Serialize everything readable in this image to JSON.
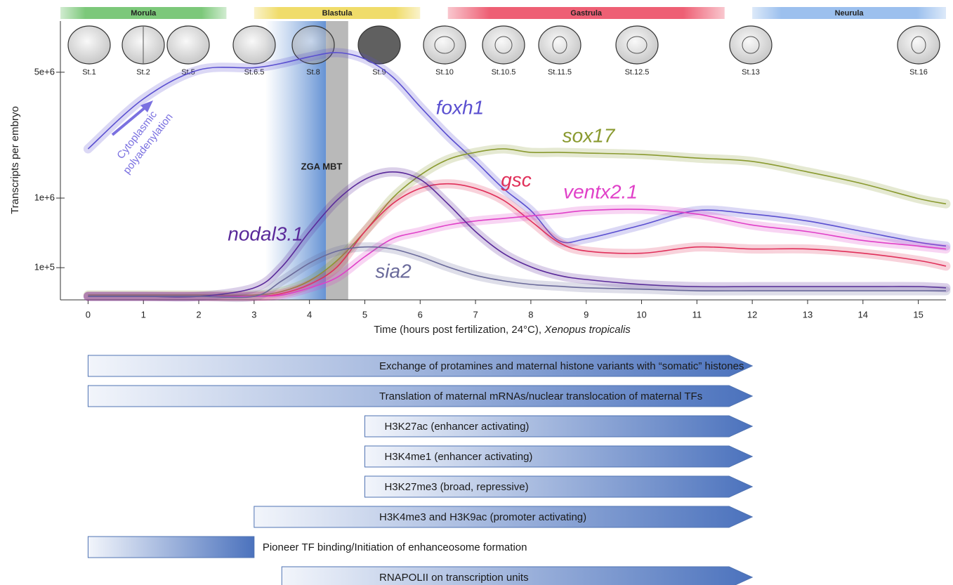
{
  "chart_data": {
    "type": "line",
    "ylabel": "Transcripts per embryo",
    "xlabel": "Time (hours post fertilization, 24°C),",
    "xlabel_italic": "Xenopus tropicalis",
    "xlim": [
      -0.5,
      15.5
    ],
    "xticks": [
      0,
      1,
      2,
      3,
      4,
      5,
      6,
      7,
      8,
      9,
      10,
      11,
      12,
      13,
      14,
      15
    ],
    "ylim": [
      0,
      7500000
    ],
    "yscale": "sqrt",
    "yticks": [
      {
        "value": 100000,
        "label": "1e+5"
      },
      {
        "value": 1000000,
        "label": "1e+6"
      },
      {
        "value": 5000000,
        "label": "5e+6"
      }
    ],
    "x": [
      0,
      1,
      2,
      3,
      3.5,
      4,
      4.5,
      5,
      5.5,
      6,
      6.5,
      7,
      7.5,
      8,
      8.5,
      9,
      10,
      11,
      12,
      13,
      14,
      15,
      15.5
    ],
    "series": [
      {
        "name": "foxh1",
        "color": "#5a4fd0",
        "values": [
          2200000,
          3900000,
          5100000,
          5200000,
          5400000,
          5700000,
          5900000,
          5600000,
          4800000,
          3600000,
          2600000,
          1850000,
          1200000,
          770000,
          340000,
          360000,
          540000,
          770000,
          710000,
          600000,
          450000,
          320000,
          280000
        ]
      },
      {
        "name": "sox17",
        "color": "#8a9a30",
        "values": [
          2300,
          2300,
          2300,
          2300,
          6800,
          35000,
          150000,
          450000,
          1000000,
          1500000,
          1900000,
          2100000,
          2200000,
          2100000,
          2100000,
          2080000,
          2040000,
          1940000,
          1850000,
          1580000,
          1300000,
          990000,
          890000
        ]
      },
      {
        "name": "gsc",
        "color": "#e0305a",
        "values": [
          1200,
          1200,
          1200,
          1200,
          3900,
          23000,
          105000,
          450000,
          890000,
          1200000,
          1300000,
          1200000,
          960000,
          600000,
          320000,
          230000,
          210000,
          270000,
          250000,
          250000,
          210000,
          150000,
          110000
        ]
      },
      {
        "name": "ventx2.1",
        "color": "#e040c8",
        "values": [
          1200,
          1200,
          1200,
          1200,
          2300,
          14000,
          49000,
          180000,
          360000,
          450000,
          540000,
          600000,
          640000,
          680000,
          720000,
          770000,
          790000,
          710000,
          540000,
          450000,
          340000,
          280000,
          250000
        ]
      },
      {
        "name": "nodal3.1",
        "color": "#5a2a9a",
        "values": [
          1200,
          1200,
          1200,
          14000,
          105000,
          450000,
          960000,
          1400000,
          1580000,
          1400000,
          890000,
          450000,
          210000,
          105000,
          58000,
          40000,
          23000,
          17000,
          17000,
          17000,
          17000,
          17000,
          14000
        ]
      },
      {
        "name": "sia2",
        "color": "#6a6a9a",
        "values": [
          1200,
          1200,
          1200,
          1200,
          35000,
          130000,
          230000,
          270000,
          250000,
          180000,
          105000,
          58000,
          35000,
          23000,
          18000,
          14000,
          11000,
          8000,
          8000,
          8000,
          8000,
          8000,
          8000
        ]
      }
    ],
    "phases": [
      {
        "name": "Morula",
        "start": -0.5,
        "end": 2.5,
        "color": "#7cc87a"
      },
      {
        "name": "Blastula",
        "start": 3,
        "end": 6,
        "color": "#f0dc6a"
      },
      {
        "name": "Gastrula",
        "start": 6.5,
        "end": 11.5,
        "color": "#ee5f74"
      },
      {
        "name": "Neurula",
        "start": 12,
        "end": 15.5,
        "color": "#9cc0ee"
      }
    ],
    "stages": [
      "St.1",
      "St.2",
      "St.5",
      "St.6.5",
      "St.8",
      "St.9",
      "St.10",
      "St.10.5",
      "St.11.5",
      "St.12.5",
      "St.13",
      "St.16"
    ],
    "zga_band": [
      3.2,
      4.3
    ],
    "mbt_band": [
      4.3,
      4.7
    ],
    "zga_mbt_label": "ZGA MBT",
    "polyadenylation_label": [
      "Cytoplasmic",
      "polyadenylation"
    ]
  },
  "processes": [
    {
      "text": "Exchange of protamines and maternal histone variants with “somatic” histones",
      "start": 0,
      "end": 12,
      "arrow": true
    },
    {
      "text": "Translation of maternal mRNAs/nuclear translocation of maternal TFs",
      "start": 0,
      "end": 12,
      "arrow": true
    },
    {
      "text": "H3K27ac (enhancer activating)",
      "start": 5,
      "end": 12,
      "arrow": true
    },
    {
      "text": "H3K4me1 (enhancer activating)",
      "start": 5,
      "end": 12,
      "arrow": true
    },
    {
      "text": "H3K27me3 (broad, repressive)",
      "start": 5,
      "end": 12,
      "arrow": true
    },
    {
      "text": "H3K4me3 and H3K9ac (promoter activating)",
      "start": 3,
      "end": 12,
      "arrow": true
    },
    {
      "text": "Pioneer TF binding/Initiation of enhanceosome formation",
      "start": 0,
      "end": 3,
      "arrow": false
    },
    {
      "text": "RNAPOLII on transcription units",
      "start": 3.5,
      "end": 12,
      "arrow": true
    }
  ]
}
